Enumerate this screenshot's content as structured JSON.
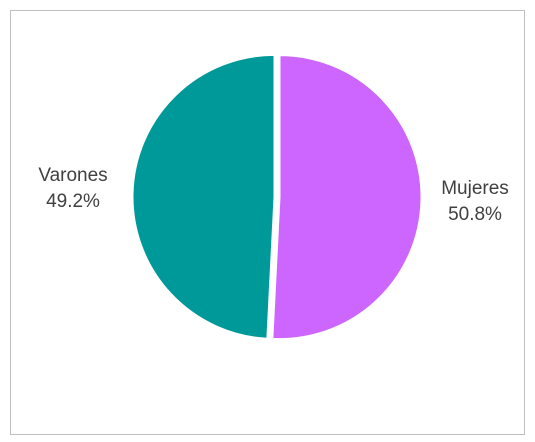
{
  "chart_data": {
    "type": "pie",
    "title": "",
    "slices": [
      {
        "label": "Mujeres",
        "value": 50.8,
        "display": "50.8%",
        "color": "#cc66ff"
      },
      {
        "label": "Varones",
        "value": 49.2,
        "display": "49.2%",
        "color": "#009999"
      }
    ],
    "legend": "none",
    "data_labels": "outside"
  }
}
